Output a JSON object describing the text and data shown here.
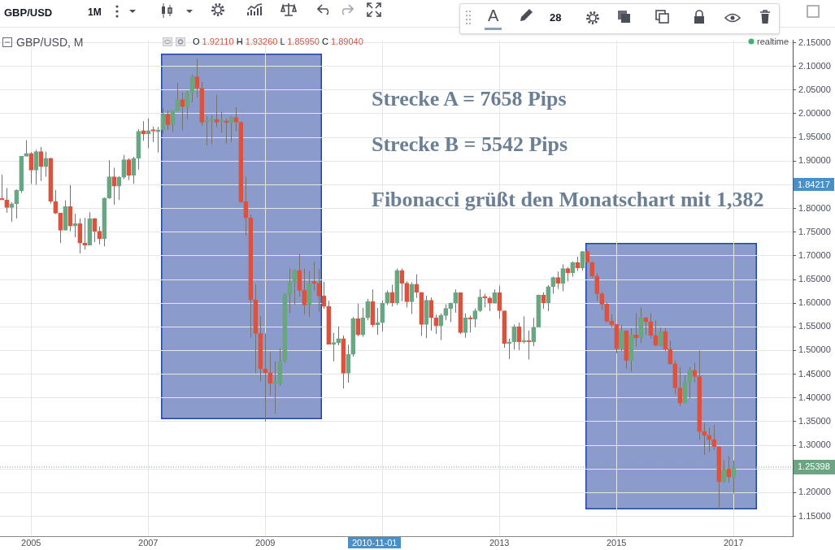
{
  "chart_data": {
    "type": "candlestick",
    "title": "GBP/USD, M",
    "x": [
      "2004-07",
      "2004-08",
      "2004-09",
      "2004-10",
      "2004-11",
      "2004-12",
      "2005-01",
      "2005-02",
      "2005-03",
      "2005-04",
      "2005-05",
      "2005-06",
      "2005-07",
      "2005-08",
      "2005-09",
      "2005-10",
      "2005-11",
      "2005-12",
      "2006-01",
      "2006-02",
      "2006-03",
      "2006-04",
      "2006-05",
      "2006-06",
      "2006-07",
      "2006-08",
      "2006-09",
      "2006-10",
      "2006-11",
      "2006-12",
      "2007-01",
      "2007-02",
      "2007-03",
      "2007-04",
      "2007-05",
      "2007-06",
      "2007-07",
      "2007-08",
      "2007-09",
      "2007-10",
      "2007-11",
      "2007-12",
      "2008-01",
      "2008-02",
      "2008-03",
      "2008-04",
      "2008-05",
      "2008-06",
      "2008-07",
      "2008-08",
      "2008-09",
      "2008-10",
      "2008-11",
      "2008-12",
      "2009-01",
      "2009-02",
      "2009-03",
      "2009-04",
      "2009-05",
      "2009-06",
      "2009-07",
      "2009-08",
      "2009-09",
      "2009-10",
      "2009-11",
      "2009-12",
      "2010-01",
      "2010-02",
      "2010-03",
      "2010-04",
      "2010-05",
      "2010-06",
      "2010-07",
      "2010-08",
      "2010-09",
      "2010-10",
      "2010-11",
      "2010-12",
      "2011-01",
      "2011-02",
      "2011-03",
      "2011-04",
      "2011-05",
      "2011-06",
      "2011-07",
      "2011-08",
      "2011-09",
      "2011-10",
      "2011-11",
      "2011-12",
      "2012-01",
      "2012-02",
      "2012-03",
      "2012-04",
      "2012-05",
      "2012-06",
      "2012-07",
      "2012-08",
      "2012-09",
      "2012-10",
      "2012-11",
      "2012-12",
      "2013-01",
      "2013-02",
      "2013-03",
      "2013-04",
      "2013-05",
      "2013-06",
      "2013-07",
      "2013-08",
      "2013-09",
      "2013-10",
      "2013-11",
      "2013-12",
      "2014-01",
      "2014-02",
      "2014-03",
      "2014-04",
      "2014-05",
      "2014-06",
      "2014-07",
      "2014-08",
      "2014-09",
      "2014-10",
      "2014-11",
      "2014-12",
      "2015-01",
      "2015-02",
      "2015-03",
      "2015-04",
      "2015-05",
      "2015-06",
      "2015-07",
      "2015-08",
      "2015-09",
      "2015-10",
      "2015-11",
      "2015-12",
      "2016-01",
      "2016-02",
      "2016-03",
      "2016-04",
      "2016-05",
      "2016-06",
      "2016-07",
      "2016-08",
      "2016-09",
      "2016-10",
      "2016-11",
      "2016-12",
      "2017-01"
    ],
    "ohlc": [
      [
        1.819,
        1.871,
        1.818,
        1.818
      ],
      [
        1.818,
        1.843,
        1.791,
        1.802
      ],
      [
        1.802,
        1.813,
        1.772,
        1.81
      ],
      [
        1.81,
        1.84,
        1.779,
        1.838
      ],
      [
        1.837,
        1.91,
        1.833,
        1.91
      ],
      [
        1.91,
        1.944,
        1.91,
        1.916
      ],
      [
        1.916,
        1.919,
        1.852,
        1.881
      ],
      [
        1.881,
        1.924,
        1.85,
        1.92
      ],
      [
        1.92,
        1.93,
        1.858,
        1.888
      ],
      [
        1.888,
        1.92,
        1.867,
        1.906
      ],
      [
        1.906,
        1.907,
        1.81,
        1.815
      ],
      [
        1.815,
        1.839,
        1.788,
        1.79
      ],
      [
        1.79,
        1.79,
        1.727,
        1.754
      ],
      [
        1.754,
        1.817,
        1.754,
        1.804
      ],
      [
        1.804,
        1.849,
        1.752,
        1.763
      ],
      [
        1.763,
        1.789,
        1.739,
        1.768
      ],
      [
        1.768,
        1.779,
        1.705,
        1.727
      ],
      [
        1.727,
        1.78,
        1.713,
        1.722
      ],
      [
        1.722,
        1.792,
        1.722,
        1.778
      ],
      [
        1.778,
        1.78,
        1.729,
        1.752
      ],
      [
        1.752,
        1.762,
        1.724,
        1.736
      ],
      [
        1.736,
        1.823,
        1.72,
        1.822
      ],
      [
        1.822,
        1.902,
        1.82,
        1.867
      ],
      [
        1.867,
        1.886,
        1.808,
        1.847
      ],
      [
        1.847,
        1.868,
        1.818,
        1.866
      ],
      [
        1.866,
        1.913,
        1.862,
        1.903
      ],
      [
        1.903,
        1.906,
        1.86,
        1.87
      ],
      [
        1.87,
        1.909,
        1.852,
        1.906
      ],
      [
        1.906,
        1.967,
        1.882,
        1.963
      ],
      [
        1.964,
        1.984,
        1.943,
        1.957
      ],
      [
        1.957,
        1.99,
        1.927,
        1.964
      ],
      [
        1.964,
        1.973,
        1.94,
        1.963
      ],
      [
        1.962,
        1.972,
        1.918,
        1.966
      ],
      [
        1.966,
        2.012,
        1.959,
        1.999
      ],
      [
        1.999,
        2.007,
        1.966,
        1.977
      ],
      [
        1.977,
        2.007,
        1.962,
        2.007
      ],
      [
        2.006,
        2.065,
        2.006,
        2.03
      ],
      [
        2.03,
        2.045,
        1.965,
        2.015
      ],
      [
        2.015,
        2.048,
        1.988,
        2.045
      ],
      [
        2.045,
        2.082,
        2.024,
        2.078
      ],
      [
        2.078,
        2.116,
        2.035,
        2.054
      ],
      [
        2.054,
        2.067,
        1.975,
        1.982
      ],
      [
        1.982,
        1.995,
        1.933,
        1.986
      ],
      [
        1.986,
        1.997,
        1.936,
        1.988
      ],
      [
        1.988,
        2.04,
        1.972,
        1.982
      ],
      [
        1.983,
        2.004,
        1.96,
        1.985
      ],
      [
        1.985,
        1.99,
        1.937,
        1.981
      ],
      [
        1.981,
        1.995,
        1.94,
        1.992
      ],
      [
        1.992,
        2.014,
        1.963,
        1.982
      ],
      [
        1.982,
        1.984,
        1.812,
        1.814
      ],
      [
        1.814,
        1.867,
        1.743,
        1.78
      ],
      [
        1.78,
        1.787,
        1.527,
        1.607
      ],
      [
        1.607,
        1.64,
        1.452,
        1.536
      ],
      [
        1.536,
        1.572,
        1.435,
        1.461
      ],
      [
        1.461,
        1.536,
        1.35,
        1.453
      ],
      [
        1.453,
        1.497,
        1.405,
        1.431
      ],
      [
        1.431,
        1.477,
        1.367,
        1.431
      ],
      [
        1.43,
        1.505,
        1.426,
        1.477
      ],
      [
        1.477,
        1.621,
        1.474,
        1.618
      ],
      [
        1.618,
        1.673,
        1.579,
        1.644
      ],
      [
        1.644,
        1.671,
        1.597,
        1.669
      ],
      [
        1.669,
        1.704,
        1.614,
        1.627
      ],
      [
        1.627,
        1.673,
        1.577,
        1.596
      ],
      [
        1.596,
        1.668,
        1.57,
        1.642
      ],
      [
        1.643,
        1.687,
        1.627,
        1.642
      ],
      [
        1.642,
        1.672,
        1.582,
        1.615
      ],
      [
        1.615,
        1.645,
        1.588,
        1.593
      ],
      [
        1.593,
        1.605,
        1.513,
        1.513
      ],
      [
        1.513,
        1.537,
        1.477,
        1.517
      ],
      [
        1.516,
        1.551,
        1.511,
        1.525
      ],
      [
        1.525,
        1.532,
        1.42,
        1.452
      ],
      [
        1.452,
        1.512,
        1.432,
        1.492
      ],
      [
        1.492,
        1.571,
        1.487,
        1.567
      ],
      [
        1.567,
        1.599,
        1.53,
        1.533
      ],
      [
        1.533,
        1.59,
        1.529,
        1.569
      ],
      [
        1.569,
        1.609,
        1.564,
        1.603
      ],
      [
        1.603,
        1.629,
        1.549,
        1.554
      ],
      [
        1.554,
        1.59,
        1.533,
        1.559
      ],
      [
        1.559,
        1.606,
        1.54,
        1.6
      ],
      [
        1.6,
        1.627,
        1.596,
        1.623
      ],
      [
        1.623,
        1.639,
        1.593,
        1.601
      ],
      [
        1.601,
        1.673,
        1.596,
        1.669
      ],
      [
        1.669,
        1.673,
        1.604,
        1.642
      ],
      [
        1.642,
        1.646,
        1.591,
        1.603
      ],
      [
        1.603,
        1.644,
        1.577,
        1.64
      ],
      [
        1.64,
        1.661,
        1.611,
        1.623
      ],
      [
        1.623,
        1.623,
        1.531,
        1.555
      ],
      [
        1.555,
        1.616,
        1.526,
        1.606
      ],
      [
        1.606,
        1.612,
        1.542,
        1.569
      ],
      [
        1.569,
        1.576,
        1.535,
        1.552
      ],
      [
        1.552,
        1.578,
        1.522,
        1.574
      ],
      [
        1.574,
        1.598,
        1.564,
        1.589
      ],
      [
        1.589,
        1.601,
        1.56,
        1.6
      ],
      [
        1.6,
        1.629,
        1.58,
        1.622
      ],
      [
        1.622,
        1.623,
        1.535,
        1.538
      ],
      [
        1.538,
        1.578,
        1.527,
        1.569
      ],
      [
        1.569,
        1.574,
        1.538,
        1.566
      ],
      [
        1.566,
        1.589,
        1.549,
        1.584
      ],
      [
        1.584,
        1.629,
        1.581,
        1.613
      ],
      [
        1.613,
        1.62,
        1.591,
        1.611
      ],
      [
        1.611,
        1.614,
        1.583,
        1.6
      ],
      [
        1.6,
        1.629,
        1.599,
        1.622
      ],
      [
        1.622,
        1.637,
        1.567,
        1.584
      ],
      [
        1.584,
        1.584,
        1.506,
        1.515
      ],
      [
        1.515,
        1.525,
        1.482,
        1.518
      ],
      [
        1.518,
        1.555,
        1.502,
        1.55
      ],
      [
        1.55,
        1.559,
        1.501,
        1.518
      ],
      [
        1.518,
        1.572,
        1.515,
        1.52
      ],
      [
        1.52,
        1.542,
        1.481,
        1.518
      ],
      [
        1.518,
        1.569,
        1.509,
        1.549
      ],
      [
        1.549,
        1.618,
        1.549,
        1.617
      ],
      [
        1.617,
        1.623,
        1.588,
        1.601
      ],
      [
        1.601,
        1.638,
        1.583,
        1.635
      ],
      [
        1.635,
        1.656,
        1.62,
        1.654
      ],
      [
        1.654,
        1.667,
        1.63,
        1.642
      ],
      [
        1.642,
        1.682,
        1.625,
        1.673
      ],
      [
        1.673,
        1.676,
        1.646,
        1.664
      ],
      [
        1.664,
        1.688,
        1.656,
        1.686
      ],
      [
        1.686,
        1.698,
        1.668,
        1.674
      ],
      [
        1.674,
        1.71,
        1.669,
        1.709
      ],
      [
        1.709,
        1.71,
        1.686,
        1.686
      ],
      [
        1.686,
        1.688,
        1.654,
        1.657
      ],
      [
        1.657,
        1.663,
        1.605,
        1.62
      ],
      [
        1.62,
        1.623,
        1.586,
        1.598
      ],
      [
        1.598,
        1.601,
        1.559,
        1.562
      ],
      [
        1.562,
        1.576,
        1.549,
        1.555
      ],
      [
        1.555,
        1.555,
        1.494,
        1.504
      ],
      [
        1.504,
        1.554,
        1.498,
        1.542
      ],
      [
        1.542,
        1.542,
        1.461,
        1.479
      ],
      [
        1.479,
        1.547,
        1.455,
        1.533
      ],
      [
        1.533,
        1.579,
        1.508,
        1.527
      ],
      [
        1.527,
        1.591,
        1.516,
        1.569
      ],
      [
        1.569,
        1.571,
        1.533,
        1.561
      ],
      [
        1.561,
        1.579,
        1.525,
        1.532
      ],
      [
        1.532,
        1.564,
        1.509,
        1.511
      ],
      [
        1.511,
        1.549,
        1.509,
        1.54
      ],
      [
        1.54,
        1.547,
        1.499,
        1.503
      ],
      [
        1.503,
        1.521,
        1.47,
        1.472
      ],
      [
        1.472,
        1.479,
        1.407,
        1.421
      ],
      [
        1.421,
        1.464,
        1.382,
        1.389
      ],
      [
        1.389,
        1.448,
        1.389,
        1.433
      ],
      [
        1.433,
        1.465,
        1.399,
        1.458
      ],
      [
        1.458,
        1.474,
        1.433,
        1.445
      ],
      [
        1.445,
        1.5,
        1.311,
        1.329
      ],
      [
        1.329,
        1.347,
        1.279,
        1.321
      ],
      [
        1.321,
        1.337,
        1.286,
        1.312
      ],
      [
        1.312,
        1.343,
        1.29,
        1.297
      ],
      [
        1.297,
        1.297,
        1.164,
        1.223
      ],
      [
        1.223,
        1.268,
        1.221,
        1.25
      ],
      [
        1.25,
        1.277,
        1.221,
        1.233
      ],
      [
        1.233,
        1.268,
        1.198,
        1.254
      ]
    ],
    "colors": [
      "#d75442",
      "#d75442",
      "#6ba583",
      "#6ba583",
      "#6ba583",
      "#6ba583",
      "#d75442",
      "#6ba583",
      "#d75442",
      "#6ba583",
      "#d75442",
      "#d75442",
      "#d75442",
      "#6ba583",
      "#d75442",
      "#6ba583",
      "#d75442",
      "#d75442",
      "#6ba583",
      "#d75442",
      "#d75442",
      "#6ba583",
      "#6ba583",
      "#d75442",
      "#6ba583",
      "#6ba583",
      "#d75442",
      "#6ba583",
      "#6ba583",
      "#d75442",
      "#6ba583",
      "#d75442",
      "#6ba583",
      "#6ba583",
      "#d75442",
      "#6ba583",
      "#6ba583",
      "#d75442",
      "#6ba583",
      "#6ba583",
      "#d75442",
      "#d75442",
      "#6ba583",
      "#6ba583",
      "#d75442",
      "#6ba583",
      "#d75442",
      "#6ba583",
      "#d75442",
      "#d75442",
      "#d75442",
      "#d75442",
      "#d75442",
      "#d75442",
      "#d75442",
      "#d75442",
      "#6ba583",
      "#6ba583",
      "#6ba583",
      "#6ba583",
      "#6ba583",
      "#d75442",
      "#d75442",
      "#6ba583",
      "#d75442",
      "#d75442",
      "#d75442",
      "#d75442",
      "#6ba583",
      "#6ba583",
      "#d75442",
      "#6ba583",
      "#6ba583",
      "#d75442",
      "#6ba583",
      "#6ba583",
      "#d75442",
      "#6ba583",
      "#6ba583",
      "#6ba583",
      "#d75442",
      "#6ba583",
      "#d75442",
      "#d75442",
      "#6ba583",
      "#d75442",
      "#d75442",
      "#6ba583",
      "#d75442",
      "#d75442",
      "#6ba583",
      "#6ba583",
      "#6ba583",
      "#6ba583",
      "#d75442",
      "#6ba583",
      "#d75442",
      "#6ba583",
      "#6ba583",
      "#d75442",
      "#d75442",
      "#6ba583",
      "#d75442",
      "#d75442",
      "#6ba583",
      "#6ba583",
      "#d75442",
      "#6ba583",
      "#d75442",
      "#6ba583",
      "#6ba583",
      "#d75442",
      "#6ba583",
      "#6ba583",
      "#d75442",
      "#6ba583",
      "#d75442",
      "#6ba583",
      "#d75442",
      "#6ba583",
      "#d75442",
      "#d75442",
      "#d75442",
      "#d75442",
      "#d75442",
      "#d75442",
      "#d75442",
      "#6ba583",
      "#d75442",
      "#6ba583",
      "#d75442",
      "#6ba583",
      "#d75442",
      "#d75442",
      "#d75442",
      "#6ba583",
      "#d75442",
      "#d75442",
      "#d75442",
      "#d75442",
      "#6ba583",
      "#6ba583",
      "#d75442",
      "#d75442",
      "#d75442",
      "#d75442",
      "#d75442",
      "#d75442",
      "#6ba583",
      "#d75442",
      "#6ba583"
    ],
    "xlim": [
      "2004-06-20",
      "2018-01-05"
    ],
    "xticks": [
      {
        "value": "2005",
        "label": "2005"
      },
      {
        "value": "2007",
        "label": "2007"
      },
      {
        "value": "2009",
        "label": "2009"
      },
      {
        "value": "2011",
        "label": null
      },
      {
        "value": "2013",
        "label": "2013"
      },
      {
        "value": "2015",
        "label": "2015"
      },
      {
        "value": "2017",
        "label": "2017"
      }
    ],
    "ylim": [
      1.108,
      2.155
    ],
    "yticks": [
      {
        "value": 1.15,
        "label": "1.15000"
      },
      {
        "value": 1.2,
        "label": "1.20000"
      },
      {
        "value": 1.25,
        "label": null
      },
      {
        "value": 1.3,
        "label": "1.30000"
      },
      {
        "value": 1.35,
        "label": "1.35000"
      },
      {
        "value": 1.4,
        "label": "1.40000"
      },
      {
        "value": 1.45,
        "label": "1.45000"
      },
      {
        "value": 1.5,
        "label": "1.50000"
      },
      {
        "value": 1.55,
        "label": "1.55000"
      },
      {
        "value": 1.6,
        "label": "1.60000"
      },
      {
        "value": 1.65,
        "label": "1.65000"
      },
      {
        "value": 1.7,
        "label": "1.70000"
      },
      {
        "value": 1.75,
        "label": "1.75000"
      },
      {
        "value": 1.8,
        "label": "1.80000"
      },
      {
        "value": 1.85,
        "label": null
      },
      {
        "value": 1.9,
        "label": "1.90000"
      },
      {
        "value": 1.95,
        "label": "1.95000"
      },
      {
        "value": 2.0,
        "label": "2.00000"
      },
      {
        "value": 2.05,
        "label": "2.05000"
      },
      {
        "value": 2.1,
        "label": "2.10000"
      },
      {
        "value": 2.15,
        "label": "2.15000"
      }
    ],
    "grid": true,
    "legend": false,
    "ref_lines": [
      {
        "axis": "y",
        "value": 1.25398,
        "label": "1.25398",
        "color": "#6ba583",
        "line_style": "dotted"
      }
    ],
    "annotations": [
      "GBP/USD",
      "1M",
      "A",
      "28",
      "O 1.92110 H 1.93260 L 1.85950 C 1.89040",
      "realtime",
      "Strecke A = 7658 Pips",
      "Strecke B = 5542 Pips",
      "Fibonacci grüßt den Monatschart mit 1,382",
      "2010-11-01",
      "1.84217"
    ]
  }
}
